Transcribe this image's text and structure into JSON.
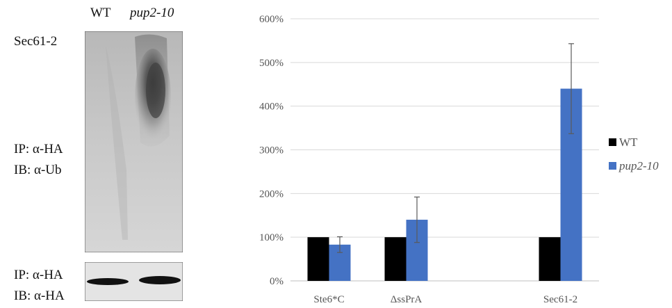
{
  "blot": {
    "lanes": [
      "WT",
      "pup2-10"
    ],
    "top_label": "Sec61-2",
    "upper_ip": "IP: α-HA",
    "upper_ib": "IB: α-Ub",
    "lower_ip": "IP: α-HA",
    "lower_ib": "IB: α-HA"
  },
  "chart_data": {
    "type": "bar",
    "categories": [
      "Ste6*C",
      "ΔssPrA",
      "",
      "Sec61-2"
    ],
    "series": [
      {
        "name": "WT",
        "values": [
          100,
          100,
          null,
          100
        ],
        "errors": [
          null,
          null,
          null,
          null
        ],
        "color": "#000000"
      },
      {
        "name": "pup2-10",
        "values": [
          83,
          140,
          null,
          440
        ],
        "errors": [
          18,
          52,
          null,
          103
        ],
        "color": "#4472c4"
      }
    ],
    "y_ticks": [
      "0%",
      "100%",
      "200%",
      "300%",
      "400%",
      "500%",
      "600%"
    ],
    "ylim": [
      0,
      600
    ],
    "grid": true,
    "legend": "right"
  }
}
